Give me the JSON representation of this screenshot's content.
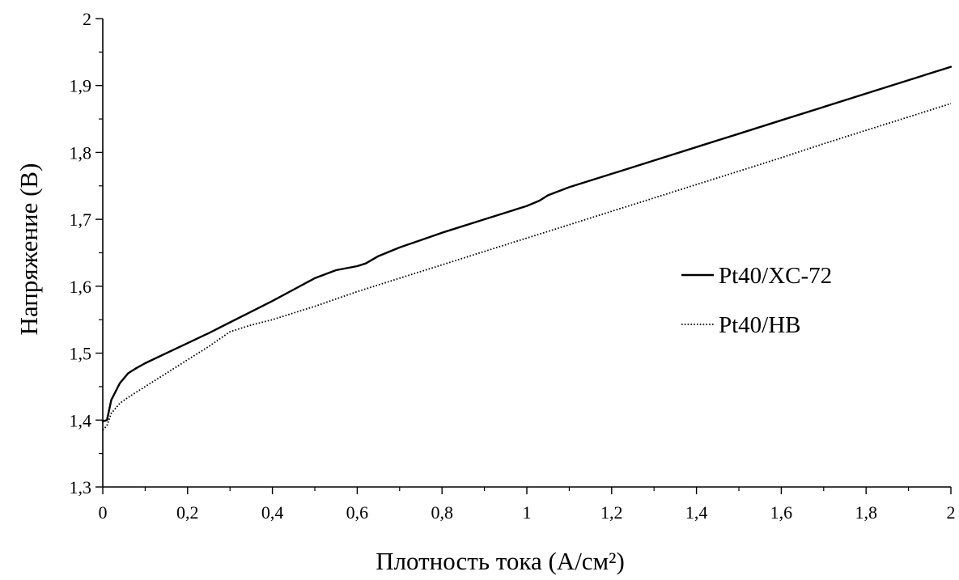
{
  "chart_data": {
    "type": "line",
    "title": "",
    "xlabel": "Плотность тока (А/см²)",
    "ylabel": "Напряжение (В)",
    "xlim": [
      0,
      2
    ],
    "ylim": [
      1.3,
      2.0
    ],
    "x_ticks": [
      0,
      0.2,
      0.4,
      0.6,
      0.8,
      1,
      1.2,
      1.4,
      1.6,
      1.8,
      2
    ],
    "x_tick_labels": [
      "0",
      "0,2",
      "0,4",
      "0,6",
      "0,8",
      "1",
      "1,2",
      "1,4",
      "1,6",
      "1,8",
      "2"
    ],
    "y_ticks": [
      1.3,
      1.4,
      1.5,
      1.6,
      1.7,
      1.8,
      1.9,
      2.0
    ],
    "y_tick_labels": [
      "1,3",
      "1,4",
      "1,5",
      "1,6",
      "1,7",
      "1,8",
      "1,9",
      "2"
    ],
    "grid": false,
    "legend_position": "right",
    "series": [
      {
        "name": "Pt40/XC-72",
        "style": "solid",
        "color": "#000000",
        "x": [
          0,
          0.01,
          0.02,
          0.04,
          0.06,
          0.08,
          0.1,
          0.15,
          0.2,
          0.25,
          0.3,
          0.35,
          0.4,
          0.45,
          0.5,
          0.55,
          0.6,
          0.62,
          0.65,
          0.7,
          0.8,
          0.9,
          1.0,
          1.03,
          1.05,
          1.1,
          1.2,
          1.3,
          1.4,
          1.5,
          1.6,
          1.7,
          1.8,
          1.9,
          2.0
        ],
        "y": [
          1.398,
          1.4,
          1.43,
          1.455,
          1.47,
          1.478,
          1.485,
          1.5,
          1.515,
          1.53,
          1.546,
          1.562,
          1.578,
          1.595,
          1.612,
          1.624,
          1.63,
          1.634,
          1.645,
          1.658,
          1.68,
          1.7,
          1.72,
          1.728,
          1.736,
          1.748,
          1.768,
          1.788,
          1.808,
          1.828,
          1.848,
          1.868,
          1.888,
          1.908,
          1.928
        ]
      },
      {
        "name": "Pt40/HB",
        "style": "dotted",
        "color": "#000000",
        "x": [
          0,
          0.01,
          0.02,
          0.04,
          0.06,
          0.08,
          0.1,
          0.15,
          0.2,
          0.25,
          0.3,
          0.35,
          0.4,
          0.45,
          0.5,
          0.6,
          0.7,
          0.8,
          0.9,
          1.0,
          1.1,
          1.2,
          1.3,
          1.4,
          1.5,
          1.6,
          1.7,
          1.8,
          1.9,
          2.0
        ],
        "y": [
          1.385,
          1.392,
          1.41,
          1.425,
          1.434,
          1.442,
          1.45,
          1.47,
          1.49,
          1.51,
          1.532,
          1.542,
          1.55,
          1.56,
          1.57,
          1.592,
          1.612,
          1.632,
          1.652,
          1.672,
          1.692,
          1.712,
          1.732,
          1.752,
          1.772,
          1.792,
          1.813,
          1.833,
          1.853,
          1.873
        ]
      }
    ]
  }
}
